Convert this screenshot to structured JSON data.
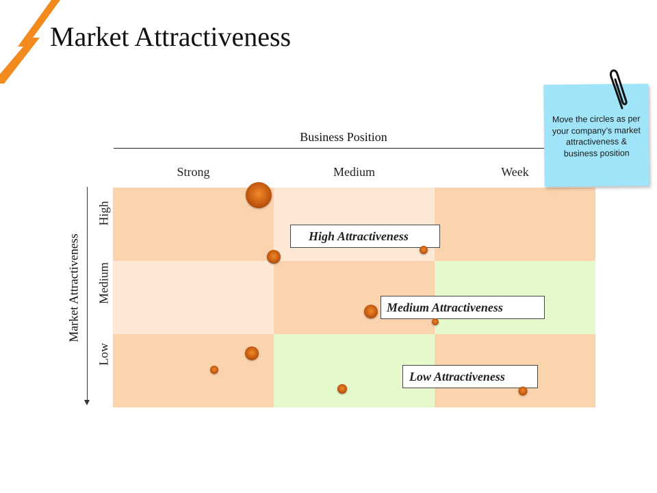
{
  "slide": {
    "title": "Market Attractiveness",
    "accent_color": "#f28a1e"
  },
  "matrix": {
    "x_axis_title": "Business Position",
    "y_axis_title": "Market Attractiveness",
    "columns": [
      "Strong",
      "Medium",
      "Week"
    ],
    "rows": [
      "High",
      "Medium",
      "Low"
    ],
    "cell_colors": [
      [
        "#fbd3ad",
        "#fde8d6",
        "#fbd3ad"
      ],
      [
        "#fde8d6",
        "#fbd3ad",
        "#e6f9cc"
      ],
      [
        "#fbd3ad",
        "#e6f9cc",
        "#fbd3ad"
      ]
    ],
    "labels": {
      "high": "High Attractiveness",
      "medium": "Medium Attractiveness",
      "low": "Low Attractiveness"
    },
    "bubble_color": "#d86a14"
  },
  "note": {
    "text": "Move the circles as per your company’s market attractiveness & business position",
    "color": "#9fe4f8",
    "icon": "paperclip-icon"
  }
}
